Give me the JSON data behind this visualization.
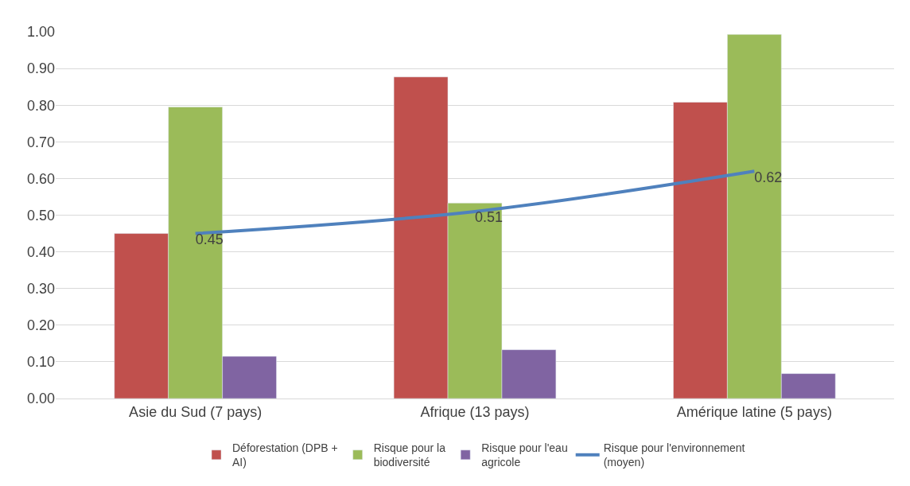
{
  "chart_data": {
    "type": "bar",
    "categories": [
      "Asie du Sud (7 pays)",
      "Afrique (13 pays)",
      "Amérique latine (5 pays)"
    ],
    "series": [
      {
        "name": "Déforestation (DPB + AI)",
        "color": "#c0504d",
        "values": [
          0.45,
          0.877,
          0.808
        ]
      },
      {
        "name": "Risque pour la biodiversité",
        "color": "#9bbb59",
        "values": [
          0.795,
          0.533,
          0.993
        ]
      },
      {
        "name": "Risque pour l'eau agricole",
        "color": "#8064a2",
        "values": [
          0.115,
          0.133,
          0.068
        ]
      },
      {
        "name": "Risque pour l'environnement (moyen)",
        "color": "#4f81bd",
        "type": "line",
        "values": [
          0.45,
          0.51,
          0.62
        ],
        "value_labels": [
          "0.45",
          "0.51",
          "0.62"
        ]
      }
    ],
    "ylim": [
      0,
      1.0
    ],
    "yticks": [
      {
        "value": 0,
        "label": "0.00"
      },
      {
        "value": 0.1,
        "label": "0.10"
      },
      {
        "value": 0.2,
        "label": "0.20"
      },
      {
        "value": 0.3,
        "label": "0.30"
      },
      {
        "value": 0.4,
        "label": "0.40"
      },
      {
        "value": 0.5,
        "label": "0.50"
      },
      {
        "value": 0.6,
        "label": "0.60"
      },
      {
        "value": 0.7,
        "label": "0.70"
      },
      {
        "value": 0.8,
        "label": "0.80"
      },
      {
        "value": 0.9,
        "label": "0.90"
      },
      {
        "value": 1.0,
        "label": "1.00"
      }
    ],
    "grid": "y",
    "legend": "bottom"
  }
}
